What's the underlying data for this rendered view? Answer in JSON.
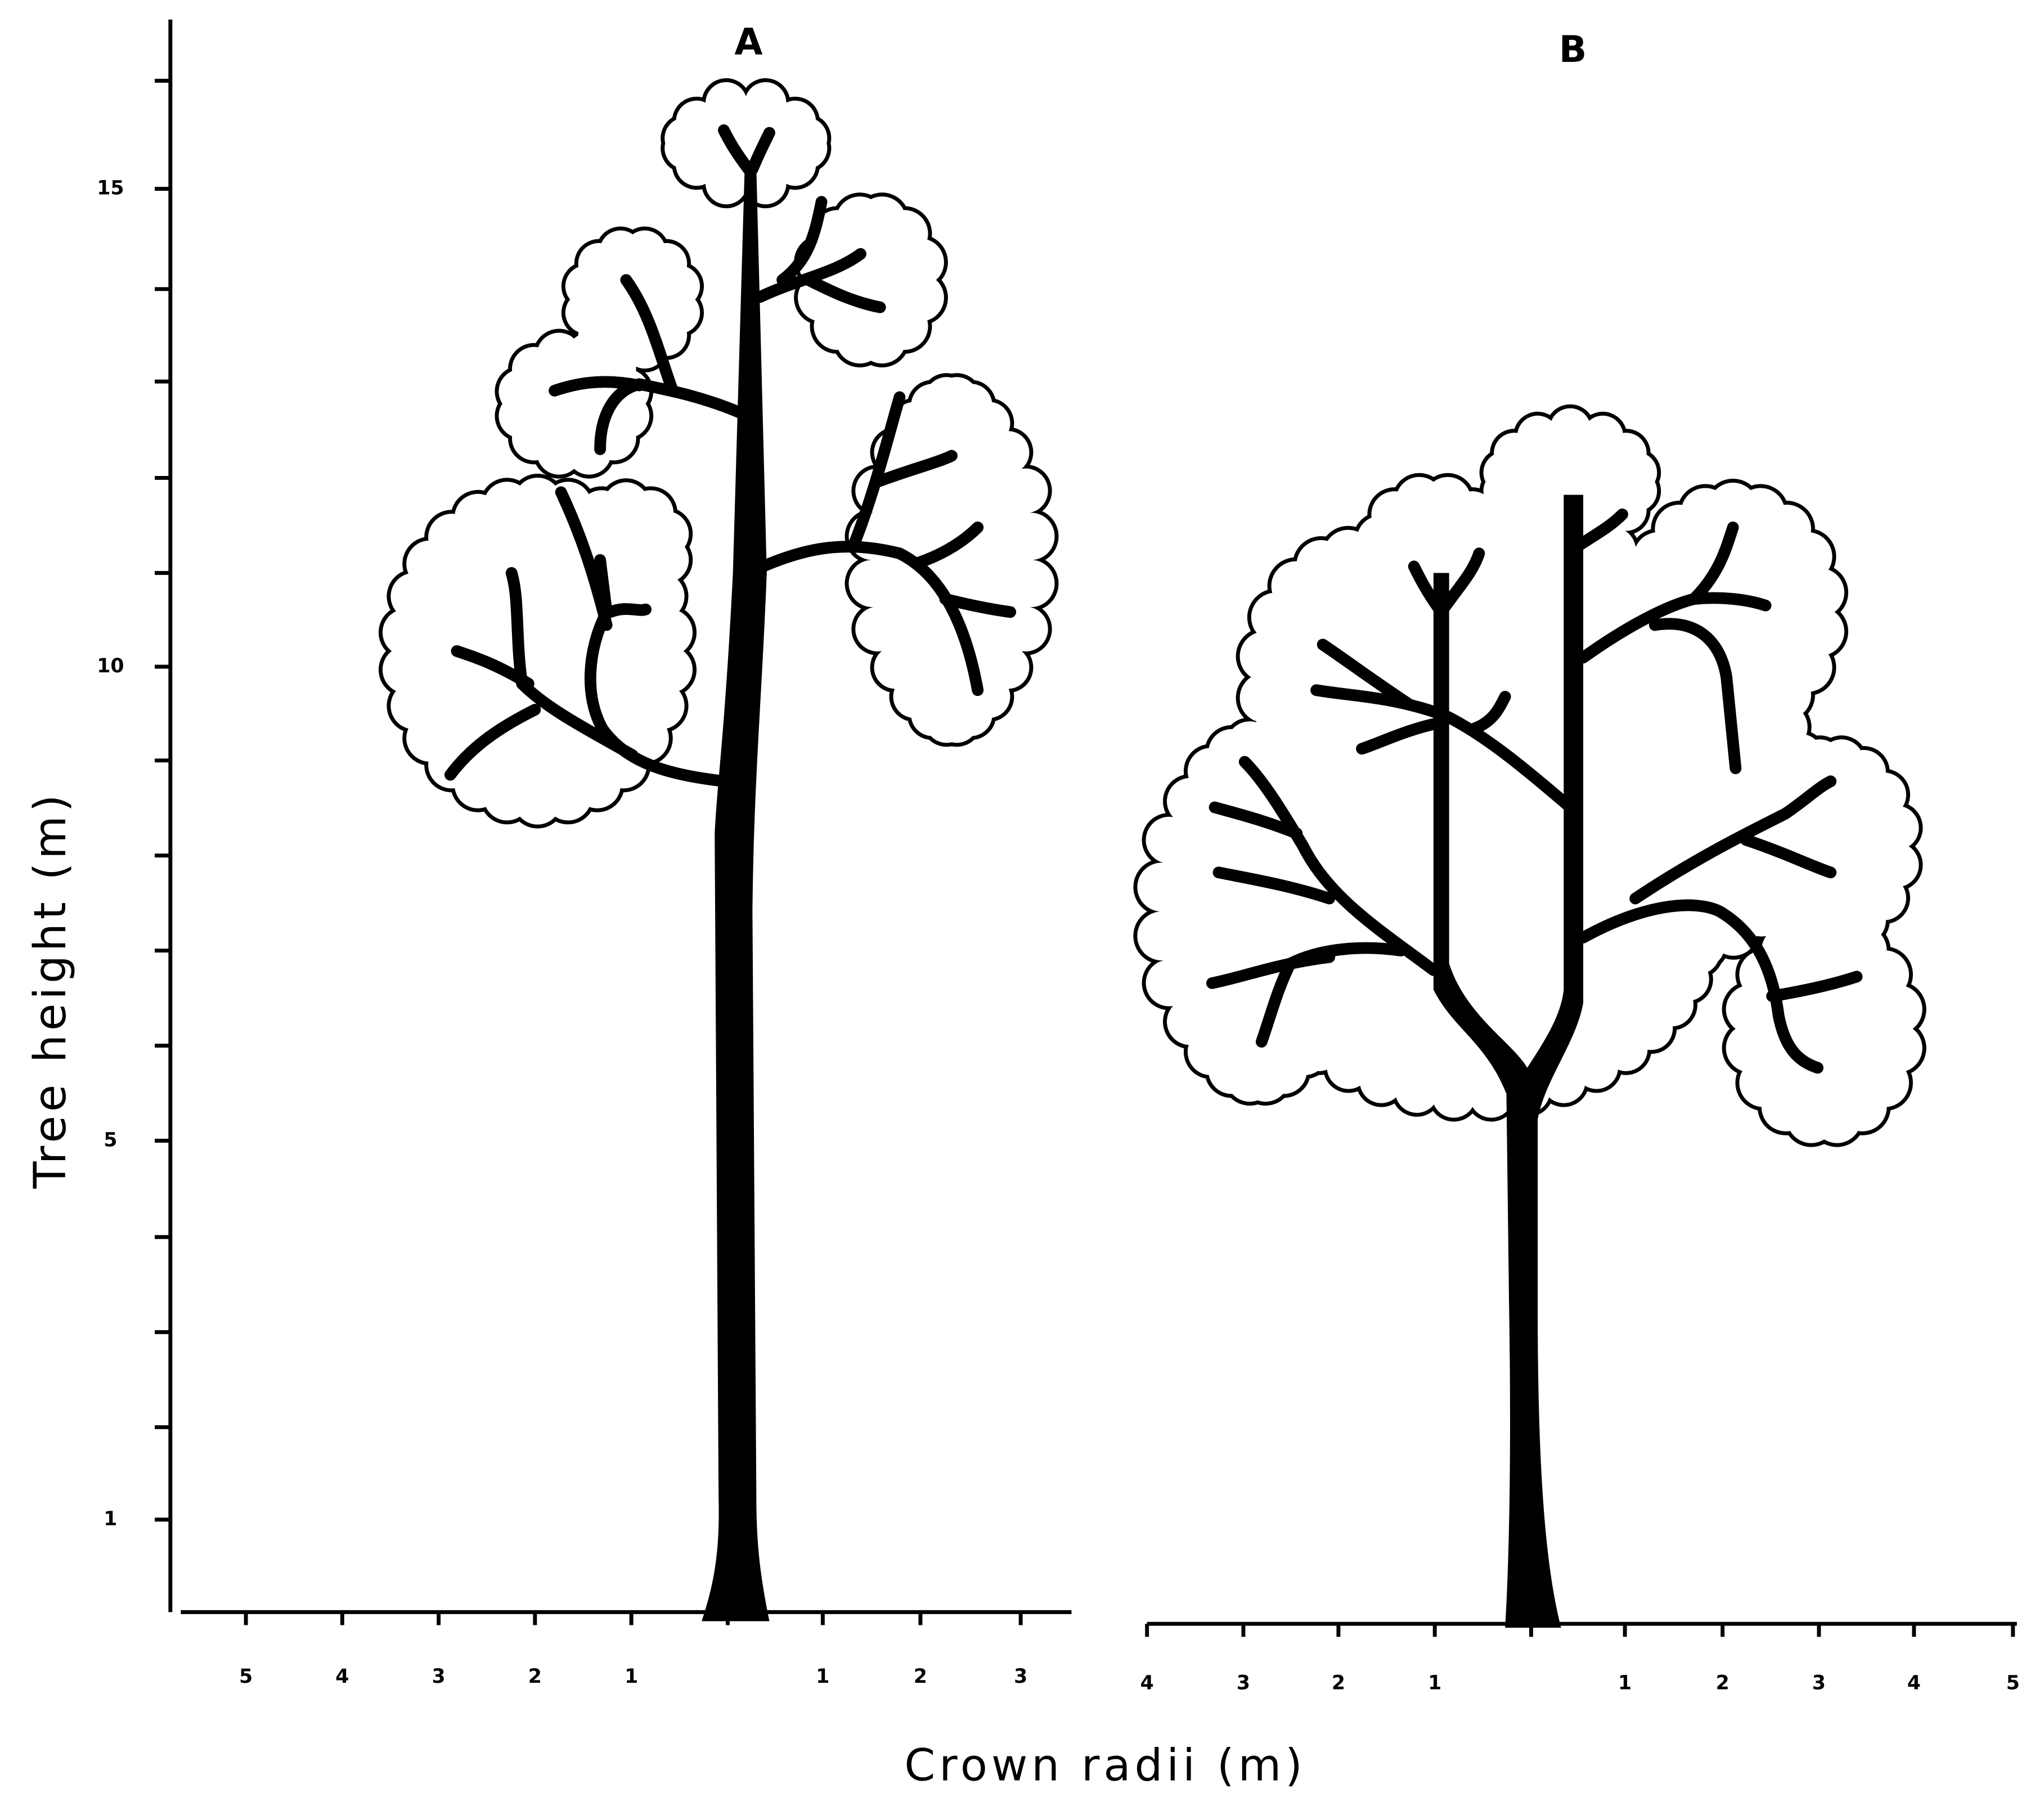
{
  "y_axis": {
    "label": "Tree height (m)",
    "tick_labels": [
      "15",
      "10",
      "5",
      "1"
    ]
  },
  "x_axis": {
    "label": "Crown radii (m)"
  },
  "panels": [
    {
      "label": "A",
      "x_tick_labels": [
        "5",
        "4",
        "3",
        "2",
        "1",
        "1",
        "2",
        "3"
      ]
    },
    {
      "label": "B",
      "x_tick_labels": [
        "4",
        "3",
        "2",
        "1",
        "1",
        "2",
        "3",
        "4",
        "5"
      ]
    }
  ]
}
